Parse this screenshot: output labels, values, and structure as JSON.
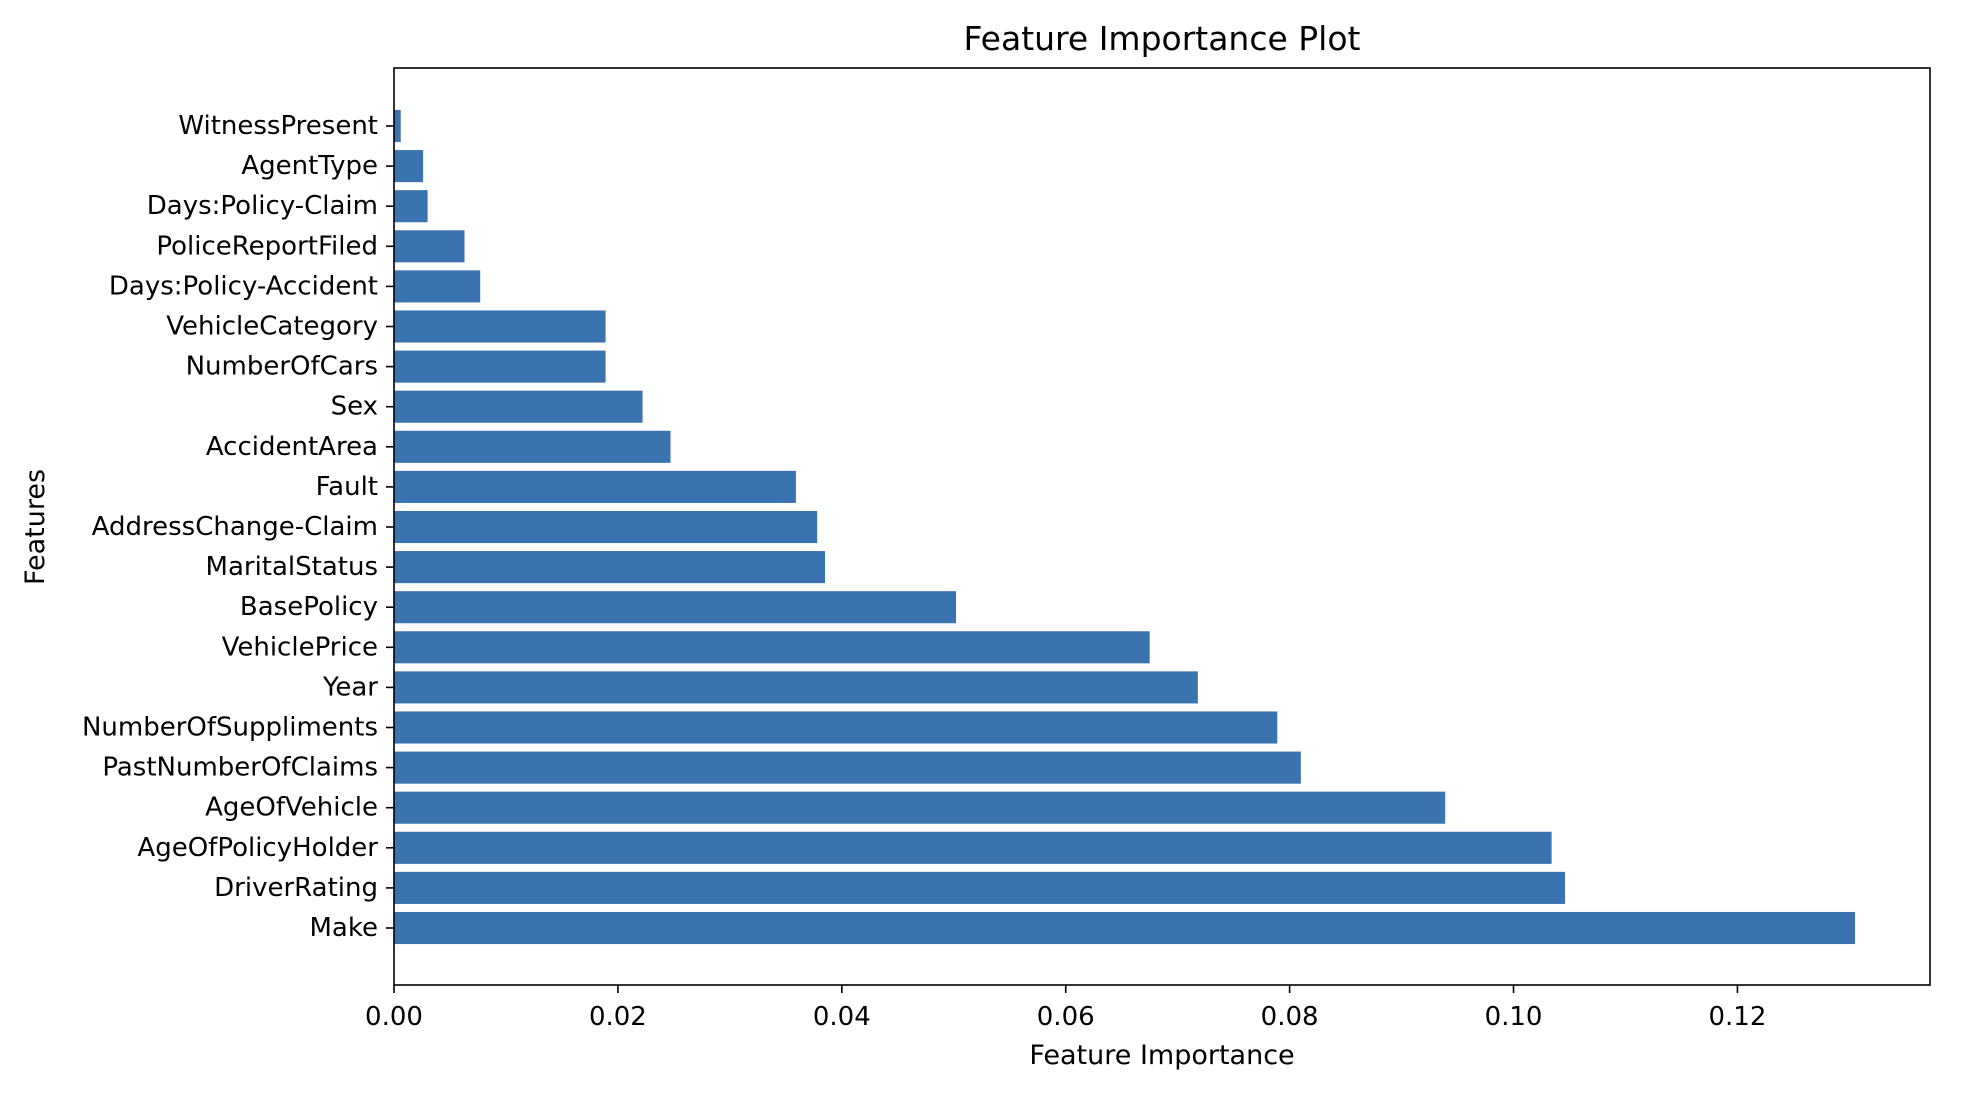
{
  "chart_data": {
    "type": "bar",
    "orientation": "horizontal",
    "title": "Feature Importance Plot",
    "xlabel": "Feature Importance",
    "ylabel": "Features",
    "categories": [
      "WitnessPresent",
      "AgentType",
      "Days:Policy-Claim",
      "PoliceReportFiled",
      "Days:Policy-Accident",
      "VehicleCategory",
      "NumberOfCars",
      "Sex",
      "AccidentArea",
      "Fault",
      "AddressChange-Claim",
      "MaritalStatus",
      "BasePolicy",
      "VehiclePrice",
      "Year",
      "NumberOfSuppliments",
      "PastNumberOfClaims",
      "AgeOfVehicle",
      "AgeOfPolicyHolder",
      "DriverRating",
      "Make"
    ],
    "values": [
      0.0006,
      0.0026,
      0.003,
      0.0063,
      0.0077,
      0.0189,
      0.0189,
      0.0222,
      0.0247,
      0.0359,
      0.0378,
      0.0385,
      0.0502,
      0.0675,
      0.0718,
      0.0789,
      0.081,
      0.0939,
      0.1034,
      0.1046,
      0.1305
    ],
    "xlim": [
      0.0,
      0.1372
    ],
    "xticks": [
      "0.00",
      "0.02",
      "0.04",
      "0.06",
      "0.08",
      "0.10",
      "0.12"
    ],
    "bar_color": "#3a73b0",
    "grid": false
  }
}
